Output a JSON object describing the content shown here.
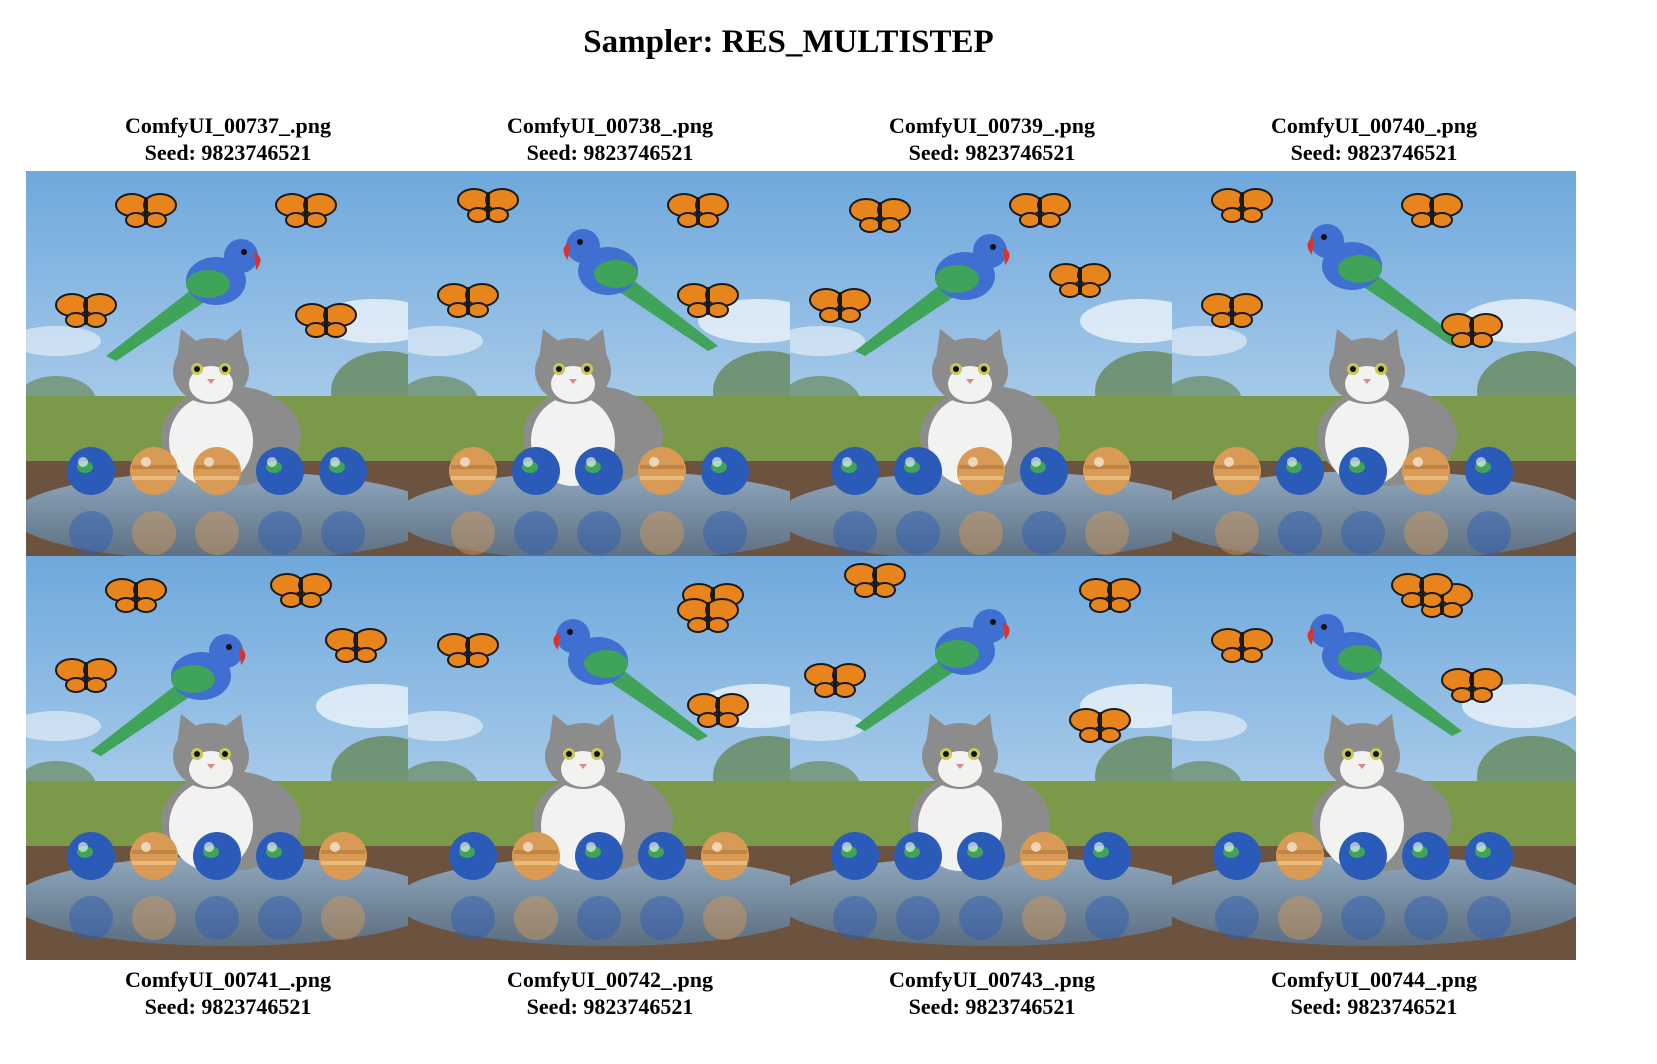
{
  "title": "Sampler: RES_MULTISTEP",
  "images": [
    {
      "filename": "ComfyUI_00737_.png",
      "seed": "Seed: 9823746521"
    },
    {
      "filename": "ComfyUI_00738_.png",
      "seed": "Seed: 9823746521"
    },
    {
      "filename": "ComfyUI_00739_.png",
      "seed": "Seed: 9823746521"
    },
    {
      "filename": "ComfyUI_00740_.png",
      "seed": "Seed: 9823746521"
    },
    {
      "filename": "ComfyUI_00741_.png",
      "seed": "Seed: 9823746521"
    },
    {
      "filename": "ComfyUI_00742_.png",
      "seed": "Seed: 9823746521"
    },
    {
      "filename": "ComfyUI_00743_.png",
      "seed": "Seed: 9823746521"
    },
    {
      "filename": "ComfyUI_00744_.png",
      "seed": "Seed: 9823746521"
    }
  ],
  "colors": {
    "sky_top": "#6fa8dc",
    "sky_bottom": "#cfe3f3",
    "grass": "#7a9a4a",
    "mud": "#6b5340",
    "water": "#8fa7bd",
    "cat_gray": "#8c8c8c",
    "cat_white": "#f2f2f0",
    "parrot_blue": "#3f6fd1",
    "parrot_green": "#3fa35a",
    "butterfly_orange": "#e8841c",
    "planet_blue": "#2a5bb8",
    "planet_tan": "#d89a55"
  }
}
